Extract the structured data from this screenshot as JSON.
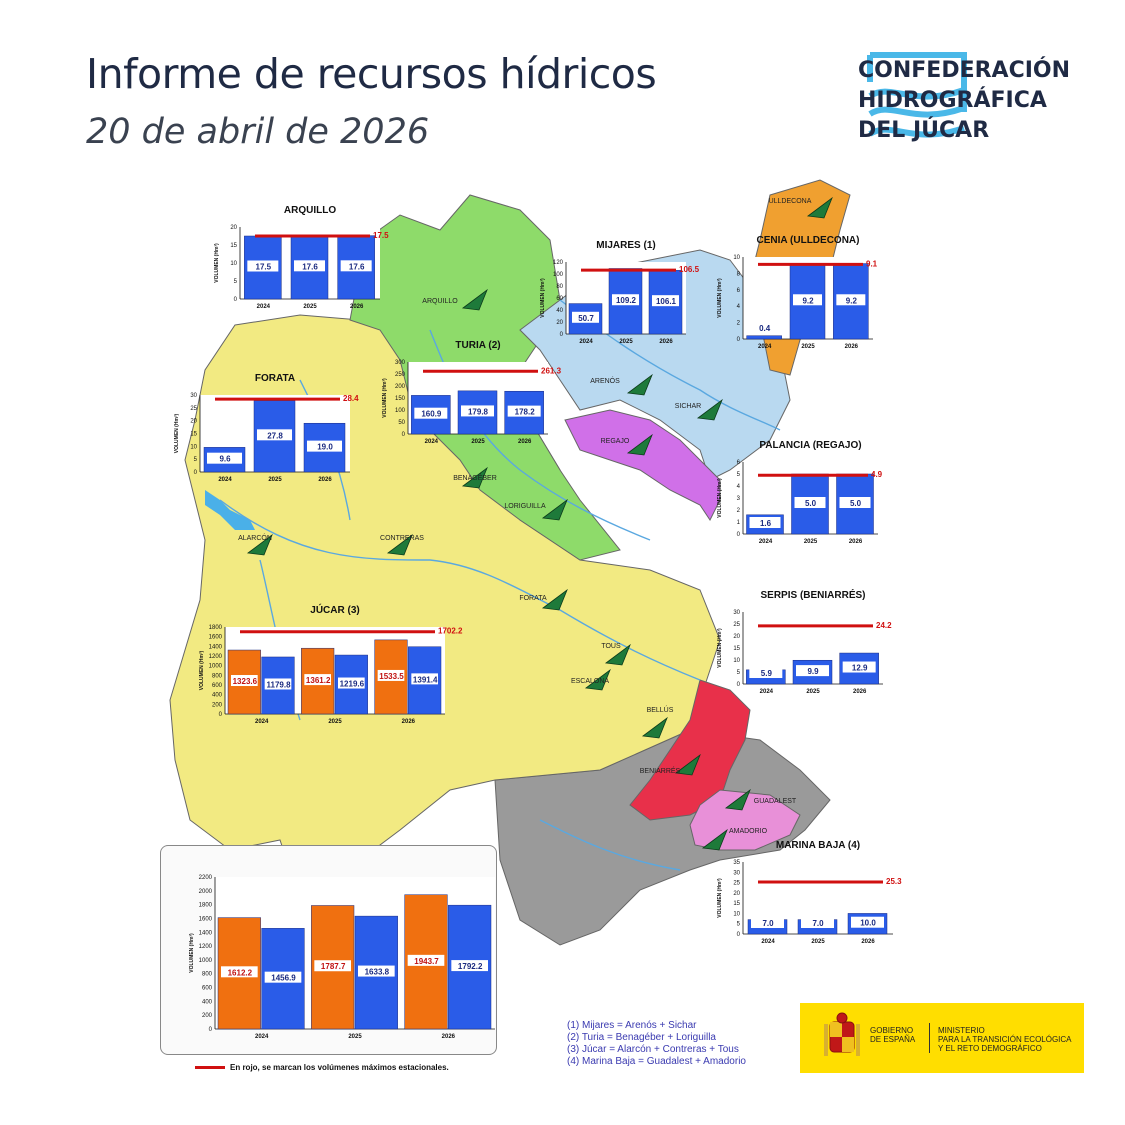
{
  "header": {
    "title": "Informe de recursos hídricos",
    "date": "20 de abril de 2026"
  },
  "logo": {
    "line1": "CONFEDERACIÓN",
    "line2": "HIDROGRÁFICA",
    "line3": "DEL JÚCAR",
    "color": "#4ab8e8"
  },
  "map_labels": [
    "ULLDECONA",
    "ARQUILLO",
    "ARENÓS",
    "SICHAR",
    "REGAJO",
    "BENAGÉBER",
    "LORIGUILLA",
    "ALARCÓN",
    "CONTRERAS",
    "FORATA",
    "TOUS",
    "ESCALONA",
    "BELLÚS",
    "BENIARRÉS",
    "GUADALEST",
    "AMADORIO"
  ],
  "region_colors": {
    "jucar": "#f2ea82",
    "turia": "#8edb6a",
    "mijares": "#b9d9f0",
    "cenia": "#f0a030",
    "regajo": "#d070e8",
    "serpis": "#e8304a",
    "marina": "#e890d8",
    "south": "#9a9a9a"
  },
  "chart_data": [
    {
      "id": "arquillo",
      "type": "bar",
      "title": "ARQUILLO",
      "ylabel": "VOLUMEN (Hm³)",
      "categories": [
        "2024",
        "2025",
        "2026"
      ],
      "ylim": [
        0,
        20
      ],
      "yticks": [
        0,
        5,
        10,
        15,
        20
      ],
      "series": [
        {
          "values": [
            17.5,
            17.6,
            17.6
          ]
        }
      ],
      "max": 17.5,
      "max_label": "17.5"
    },
    {
      "id": "mijares",
      "type": "bar",
      "title": "MIJARES (1)",
      "ylabel": "VOLUMEN (Hm³)",
      "categories": [
        "2024",
        "2025",
        "2026"
      ],
      "ylim": [
        0,
        120
      ],
      "yticks": [
        0,
        20,
        40,
        60,
        80,
        100,
        120
      ],
      "series": [
        {
          "values": [
            50.7,
            109.2,
            106.1
          ]
        }
      ],
      "max": 106.5,
      "max_label": "106.5"
    },
    {
      "id": "cenia",
      "type": "bar",
      "title": "CENIA (ULLDECONA)",
      "ylabel": "VOLUMEN (Hm³)",
      "categories": [
        "2024",
        "2025",
        "2026"
      ],
      "ylim": [
        0,
        10
      ],
      "yticks": [
        0,
        2,
        4,
        6,
        8,
        10
      ],
      "series": [
        {
          "values": [
            0.4,
            9.2,
            9.2
          ]
        }
      ],
      "max": 9.1,
      "max_label": "9.1"
    },
    {
      "id": "turia",
      "type": "bar",
      "title": "TURIA (2)",
      "ylabel": "VOLUMEN (Hm³)",
      "categories": [
        "2024",
        "2025",
        "2026"
      ],
      "ylim": [
        0,
        300
      ],
      "yticks": [
        0,
        50,
        100,
        150,
        200,
        250,
        300
      ],
      "series": [
        {
          "values": [
            160.9,
            179.8,
            178.2
          ]
        }
      ],
      "max": 261.3,
      "max_label": "261.3"
    },
    {
      "id": "forata",
      "type": "bar",
      "title": "FORATA",
      "ylabel": "VOLUMEN (Hm³)",
      "categories": [
        "2024",
        "2025",
        "2026"
      ],
      "ylim": [
        0,
        30
      ],
      "yticks": [
        0,
        5,
        10,
        15,
        20,
        25,
        30
      ],
      "series": [
        {
          "values": [
            9.6,
            27.8,
            19.0
          ]
        }
      ],
      "max": 28.4,
      "max_label": "28.4"
    },
    {
      "id": "palancia",
      "type": "bar",
      "title": "PALANCIA (REGAJO)",
      "ylabel": "VOLUMEN (Hm³)",
      "categories": [
        "2024",
        "2025",
        "2026"
      ],
      "ylim": [
        0,
        6
      ],
      "yticks": [
        0,
        1,
        2,
        3,
        4,
        5,
        6
      ],
      "series": [
        {
          "values": [
            1.6,
            5.0,
            5.0
          ]
        }
      ],
      "max": 4.9,
      "max_label": "4.9"
    },
    {
      "id": "serpis",
      "type": "bar",
      "title": "SERPIS (BENIARRÉS)",
      "ylabel": "VOLUMEN (Hm³)",
      "categories": [
        "2024",
        "2025",
        "2026"
      ],
      "ylim": [
        0,
        30
      ],
      "yticks": [
        0,
        5,
        10,
        15,
        20,
        25,
        30
      ],
      "series": [
        {
          "values": [
            5.9,
            9.9,
            12.9
          ]
        }
      ],
      "max": 24.2,
      "max_label": "24.2"
    },
    {
      "id": "marina",
      "type": "bar",
      "title": "MARINA BAJA (4)",
      "ylabel": "VOLUMEN (Hm³)",
      "categories": [
        "2024",
        "2025",
        "2026"
      ],
      "ylim": [
        0,
        35
      ],
      "yticks": [
        0,
        5,
        10,
        15,
        20,
        25,
        30,
        35
      ],
      "series": [
        {
          "values": [
            7.0,
            7.0,
            10.0
          ]
        }
      ],
      "max": 25.3,
      "max_label": "25.3"
    },
    {
      "id": "jucar",
      "type": "bar",
      "title": "JÚCAR (3)",
      "ylabel": "VOLUMEN (Hm³)",
      "categories": [
        "2024",
        "2025",
        "2026"
      ],
      "ylim": [
        0,
        1800
      ],
      "yticks": [
        0,
        200,
        400,
        600,
        800,
        1000,
        1200,
        1400,
        1600,
        1800
      ],
      "series": [
        {
          "values": [
            1323.6,
            1361.2,
            1533.5
          ],
          "color": "#f07010"
        },
        {
          "values": [
            1179.8,
            1219.6,
            1391.4
          ],
          "color": "#2a5ce8"
        }
      ],
      "max": 1702.2,
      "max_label": "1702.2"
    },
    {
      "id": "total",
      "type": "bar",
      "title": "",
      "ylabel": "VOLUMEN (Hm³)",
      "categories": [
        "2024",
        "2025",
        "2026"
      ],
      "ylim": [
        0,
        2200
      ],
      "yticks": [
        0,
        200,
        400,
        600,
        800,
        1000,
        1200,
        1400,
        1600,
        1800,
        2000,
        2200
      ],
      "series": [
        {
          "values": [
            1612.2,
            1787.7,
            1943.7
          ],
          "color": "#f07010"
        },
        {
          "values": [
            1456.9,
            1633.8,
            1792.2
          ],
          "color": "#2a5ce8"
        }
      ]
    }
  ],
  "legend_note": "En rojo, se marcan los volúmenes máximos estacionales.",
  "notes": [
    "(1) Mijares = Arenós + Sichar",
    "(2) Turia = Benagéber + Loriguilla",
    "(3) Júcar = Alarcón + Contreras + Tous",
    "(4) Marina Baja = Guadalest + Amadorio"
  ],
  "gov": {
    "left_line1": "GOBIERNO",
    "left_line2": "DE ESPAÑA",
    "right_line1": "MINISTERIO",
    "right_line2": "PARA LA TRANSICIÓN ECOLÓGICA",
    "right_line3": "Y EL RETO DEMOGRÁFICO"
  }
}
